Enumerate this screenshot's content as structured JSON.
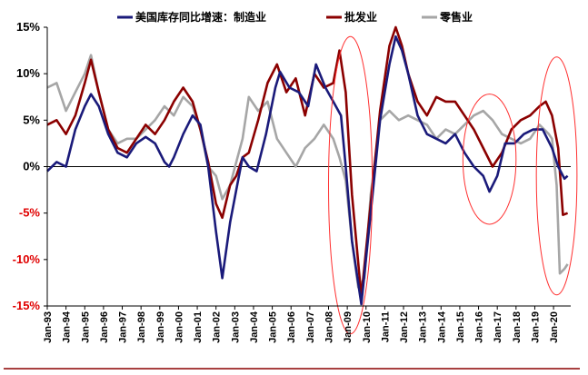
{
  "chart_data": {
    "type": "line",
    "title": "",
    "xlabel": "",
    "ylabel": "",
    "ylim": [
      -15,
      15
    ],
    "xlim": [
      "1993-01",
      "2020-12"
    ],
    "y_ticks": [
      "15%",
      "10%",
      "5%",
      "0%",
      "-5%",
      "-10%",
      "-15%"
    ],
    "y_tick_values": [
      15,
      10,
      5,
      0,
      -5,
      -10,
      -15
    ],
    "negative_tick_color": "#e00000",
    "x_ticks": [
      "Jan-93",
      "Jan-94",
      "Jan-95",
      "Jan-96",
      "Jan-97",
      "Jan-98",
      "Jan-99",
      "Jan-00",
      "Jan-01",
      "Jan-02",
      "Jan-03",
      "Jan-04",
      "Jan-05",
      "Jan-06",
      "Jan-07",
      "Jan-08",
      "Jan-09",
      "Jan-10",
      "Jan-11",
      "Jan-12",
      "Jan-13",
      "Jan-14",
      "Jan-15",
      "Jan-16",
      "Jan-17",
      "Jan-18",
      "Jan-19",
      "Jan-20"
    ],
    "grid": false,
    "legend_position": "top",
    "legend_title": "美国库存同比增速：",
    "series": [
      {
        "name": "制造业",
        "color": "#1a1a7a",
        "points": [
          [
            "1993-01",
            -0.5
          ],
          [
            "1993-07",
            0.5
          ],
          [
            "1994-01",
            0.0
          ],
          [
            "1994-07",
            4.0
          ],
          [
            "1995-01",
            6.5
          ],
          [
            "1995-05",
            7.8
          ],
          [
            "1995-10",
            6.5
          ],
          [
            "1996-04",
            3.5
          ],
          [
            "1996-10",
            1.5
          ],
          [
            "1997-04",
            1.0
          ],
          [
            "1997-10",
            2.5
          ],
          [
            "1998-04",
            3.2
          ],
          [
            "1998-10",
            2.5
          ],
          [
            "1999-04",
            0.5
          ],
          [
            "1999-07",
            0.0
          ],
          [
            "1999-10",
            1.0
          ],
          [
            "2000-04",
            3.5
          ],
          [
            "2000-10",
            5.5
          ],
          [
            "2001-03",
            4.5
          ],
          [
            "2001-08",
            0.0
          ],
          [
            "2002-01",
            -7.0
          ],
          [
            "2002-05",
            -12.0
          ],
          [
            "2002-10",
            -6.0
          ],
          [
            "2003-02",
            -2.5
          ],
          [
            "2003-06",
            1.0
          ],
          [
            "2003-10",
            0.0
          ],
          [
            "2004-03",
            -0.5
          ],
          [
            "2004-09",
            3.5
          ],
          [
            "2005-03",
            8.5
          ],
          [
            "2005-06",
            10.2
          ],
          [
            "2005-12",
            8.5
          ],
          [
            "2006-06",
            8.0
          ],
          [
            "2006-12",
            6.5
          ],
          [
            "2007-05",
            11.0
          ],
          [
            "2007-11",
            8.5
          ],
          [
            "2008-04",
            7.0
          ],
          [
            "2008-09",
            5.5
          ],
          [
            "2008-12",
            0.0
          ],
          [
            "2009-04",
            -8.0
          ],
          [
            "2009-10",
            -14.8
          ],
          [
            "2010-04",
            -5.0
          ],
          [
            "2010-10",
            5.0
          ],
          [
            "2011-04",
            11.0
          ],
          [
            "2011-08",
            14.0
          ],
          [
            "2011-12",
            12.5
          ],
          [
            "2012-04",
            10.0
          ],
          [
            "2012-10",
            5.5
          ],
          [
            "2013-04",
            3.5
          ],
          [
            "2013-10",
            3.0
          ],
          [
            "2014-04",
            2.5
          ],
          [
            "2014-10",
            3.5
          ],
          [
            "2015-04",
            1.5
          ],
          [
            "2015-10",
            0.0
          ],
          [
            "2016-04",
            -1.0
          ],
          [
            "2016-08",
            -2.7
          ],
          [
            "2017-01",
            -1.0
          ],
          [
            "2017-06",
            2.5
          ],
          [
            "2017-12",
            2.5
          ],
          [
            "2018-06",
            3.5
          ],
          [
            "2018-12",
            4.0
          ],
          [
            "2019-06",
            4.0
          ],
          [
            "2019-12",
            2.0
          ],
          [
            "2020-04",
            0.0
          ],
          [
            "2020-08",
            -1.3
          ],
          [
            "2020-10",
            -1.0
          ]
        ]
      },
      {
        "name": "批发业",
        "color": "#8b0000",
        "points": [
          [
            "1993-01",
            4.5
          ],
          [
            "1993-07",
            5.0
          ],
          [
            "1994-01",
            3.5
          ],
          [
            "1994-07",
            5.5
          ],
          [
            "1995-01",
            9.0
          ],
          [
            "1995-05",
            11.5
          ],
          [
            "1995-10",
            8.0
          ],
          [
            "1996-04",
            4.0
          ],
          [
            "1996-10",
            2.0
          ],
          [
            "1997-04",
            1.5
          ],
          [
            "1997-10",
            3.0
          ],
          [
            "1998-04",
            4.5
          ],
          [
            "1998-10",
            3.5
          ],
          [
            "1999-04",
            5.0
          ],
          [
            "1999-10",
            7.0
          ],
          [
            "2000-04",
            8.5
          ],
          [
            "2000-10",
            7.0
          ],
          [
            "2001-03",
            4.0
          ],
          [
            "2001-08",
            0.5
          ],
          [
            "2002-01",
            -4.0
          ],
          [
            "2002-05",
            -5.5
          ],
          [
            "2002-10",
            -2.0
          ],
          [
            "2003-02",
            -1.0
          ],
          [
            "2003-06",
            1.0
          ],
          [
            "2003-10",
            1.5
          ],
          [
            "2004-04",
            5.0
          ],
          [
            "2004-10",
            9.0
          ],
          [
            "2005-04",
            11.0
          ],
          [
            "2005-10",
            8.0
          ],
          [
            "2006-04",
            9.5
          ],
          [
            "2006-10",
            5.5
          ],
          [
            "2007-04",
            10.0
          ],
          [
            "2007-10",
            8.5
          ],
          [
            "2008-04",
            9.0
          ],
          [
            "2008-08",
            12.5
          ],
          [
            "2008-12",
            8.0
          ],
          [
            "2009-04",
            -3.0
          ],
          [
            "2009-10",
            -14.0
          ],
          [
            "2010-04",
            -4.0
          ],
          [
            "2010-10",
            6.0
          ],
          [
            "2011-04",
            13.0
          ],
          [
            "2011-08",
            15.0
          ],
          [
            "2011-12",
            13.0
          ],
          [
            "2012-04",
            10.0
          ],
          [
            "2012-10",
            7.0
          ],
          [
            "2013-04",
            5.5
          ],
          [
            "2013-10",
            7.5
          ],
          [
            "2014-04",
            7.0
          ],
          [
            "2014-10",
            7.0
          ],
          [
            "2015-04",
            5.5
          ],
          [
            "2015-10",
            4.0
          ],
          [
            "2016-04",
            2.0
          ],
          [
            "2016-10",
            0.0
          ],
          [
            "2017-04",
            1.5
          ],
          [
            "2017-10",
            4.0
          ],
          [
            "2018-04",
            5.0
          ],
          [
            "2018-10",
            5.5
          ],
          [
            "2019-04",
            6.5
          ],
          [
            "2019-08",
            7.0
          ],
          [
            "2019-12",
            5.5
          ],
          [
            "2020-04",
            2.0
          ],
          [
            "2020-07",
            -5.2
          ],
          [
            "2020-10",
            -5.0
          ]
        ]
      },
      {
        "name": "零售业",
        "color": "#a6a6a6",
        "points": [
          [
            "1993-01",
            8.5
          ],
          [
            "1993-07",
            9.0
          ],
          [
            "1994-01",
            6.0
          ],
          [
            "1994-07",
            8.0
          ],
          [
            "1995-01",
            10.0
          ],
          [
            "1995-05",
            12.0
          ],
          [
            "1995-10",
            8.0
          ],
          [
            "1996-04",
            4.0
          ],
          [
            "1996-10",
            2.5
          ],
          [
            "1997-04",
            3.0
          ],
          [
            "1997-10",
            3.0
          ],
          [
            "1998-04",
            4.0
          ],
          [
            "1998-10",
            5.0
          ],
          [
            "1999-04",
            6.5
          ],
          [
            "1999-10",
            5.5
          ],
          [
            "2000-04",
            7.5
          ],
          [
            "2000-10",
            6.5
          ],
          [
            "2001-03",
            4.0
          ],
          [
            "2001-08",
            0.0
          ],
          [
            "2002-01",
            -1.0
          ],
          [
            "2002-05",
            -3.5
          ],
          [
            "2002-10",
            -2.0
          ],
          [
            "2003-02",
            0.5
          ],
          [
            "2003-06",
            3.0
          ],
          [
            "2003-10",
            7.5
          ],
          [
            "2004-04",
            6.0
          ],
          [
            "2004-10",
            7.0
          ],
          [
            "2005-04",
            3.0
          ],
          [
            "2005-10",
            1.5
          ],
          [
            "2006-04",
            0.0
          ],
          [
            "2006-10",
            2.0
          ],
          [
            "2007-04",
            3.0
          ],
          [
            "2007-10",
            4.5
          ],
          [
            "2008-04",
            3.0
          ],
          [
            "2008-08",
            1.0
          ],
          [
            "2008-12",
            -1.5
          ],
          [
            "2009-04",
            -8.0
          ],
          [
            "2009-08",
            -13.0
          ],
          [
            "2009-12",
            -12.0
          ],
          [
            "2010-04",
            -3.0
          ],
          [
            "2010-10",
            5.0
          ],
          [
            "2011-04",
            6.0
          ],
          [
            "2011-10",
            5.0
          ],
          [
            "2012-04",
            5.5
          ],
          [
            "2012-10",
            5.0
          ],
          [
            "2013-04",
            4.5
          ],
          [
            "2013-10",
            3.0
          ],
          [
            "2014-04",
            4.0
          ],
          [
            "2014-10",
            3.5
          ],
          [
            "2015-04",
            4.5
          ],
          [
            "2015-10",
            5.5
          ],
          [
            "2016-04",
            6.0
          ],
          [
            "2016-10",
            5.0
          ],
          [
            "2017-04",
            3.5
          ],
          [
            "2017-10",
            3.0
          ],
          [
            "2018-04",
            2.5
          ],
          [
            "2018-10",
            3.0
          ],
          [
            "2019-04",
            4.5
          ],
          [
            "2019-10",
            3.5
          ],
          [
            "2019-12",
            3.0
          ],
          [
            "2020-03",
            -2.0
          ],
          [
            "2020-05",
            -11.5
          ],
          [
            "2020-08",
            -11.0
          ],
          [
            "2020-10",
            -10.5
          ]
        ]
      }
    ],
    "annotations": [
      {
        "type": "ellipse",
        "color": "#ff3030",
        "center_x": "2009-03",
        "center_y": -2.0,
        "radius_x_months": 14,
        "radius_y_pct": 16.0
      },
      {
        "type": "ellipse",
        "color": "#ff3030",
        "center_x": "2016-08",
        "center_y": 0.8,
        "radius_x_months": 17,
        "radius_y_pct": 7.0
      },
      {
        "type": "ellipse",
        "color": "#ff3030",
        "center_x": "2020-03",
        "center_y": -1.0,
        "radius_x_months": 13,
        "radius_y_pct": 12.8
      }
    ]
  }
}
